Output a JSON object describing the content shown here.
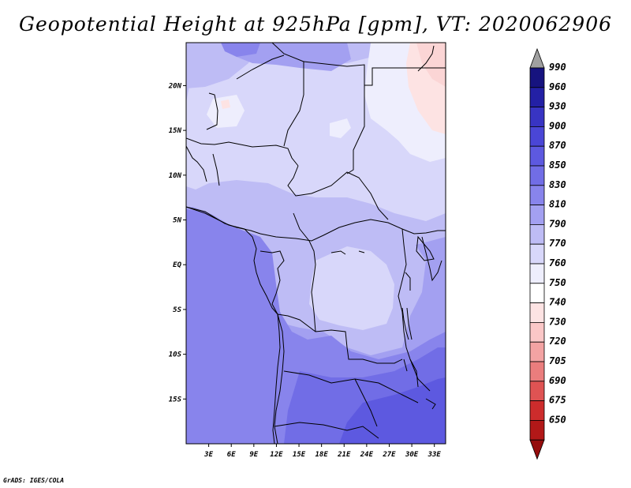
{
  "title": "Geopotential Height at 925hPa [gpm], VT: 2020062906",
  "credit": "GrADS: IGES/COLA",
  "lat_ticks": [
    {
      "label": "20N",
      "lat": 20
    },
    {
      "label": "15N",
      "lat": 15
    },
    {
      "label": "10N",
      "lat": 10
    },
    {
      "label": "5N",
      "lat": 5
    },
    {
      "label": "EQ",
      "lat": 0
    },
    {
      "label": "5S",
      "lat": -5
    },
    {
      "label": "10S",
      "lat": -10
    },
    {
      "label": "15S",
      "lat": -15
    }
  ],
  "lon_ticks": [
    {
      "label": "3E",
      "lon": 3
    },
    {
      "label": "6E",
      "lon": 6
    },
    {
      "label": "9E",
      "lon": 9
    },
    {
      "label": "12E",
      "lon": 12
    },
    {
      "label": "15E",
      "lon": 15
    },
    {
      "label": "18E",
      "lon": 18
    },
    {
      "label": "21E",
      "lon": 21
    },
    {
      "label": "24E",
      "lon": 24
    },
    {
      "label": "27E",
      "lon": 27
    },
    {
      "label": "30E",
      "lon": 30
    },
    {
      "label": "33E",
      "lon": 33
    }
  ],
  "map_extent": {
    "lon_min": 0,
    "lon_max": 34.5,
    "lat_min": -20,
    "lat_max": 24.8
  },
  "colorbar": {
    "labels": [
      "990",
      "960",
      "930",
      "900",
      "870",
      "850",
      "830",
      "810",
      "790",
      "770",
      "760",
      "750",
      "740",
      "730",
      "720",
      "705",
      "690",
      "675",
      "650"
    ],
    "colors": [
      "#16137f",
      "#2320a5",
      "#3834c3",
      "#4a46d6",
      "#5d59e0",
      "#716de6",
      "#8884ec",
      "#a3a0f1",
      "#bebcf5",
      "#d8d7fa",
      "#eeeefd",
      "#ffffff",
      "#fde3e3",
      "#fbc7c7",
      "#f3a3a3",
      "#ea7d7d",
      "#df5353",
      "#cd2c2c",
      "#b21818",
      "#950d0d"
    ],
    "top_triangle_color": "#a0a0a0"
  },
  "field_colors": {
    "band_770": "#d8d7fa",
    "band_790": "#bebcf5",
    "band_810": "#a3a0f1",
    "band_830": "#8884ec",
    "band_850": "#716de6",
    "band_760": "#eeeefd",
    "band_750": "#fde3e3",
    "band_740": "#fbd5d5"
  }
}
